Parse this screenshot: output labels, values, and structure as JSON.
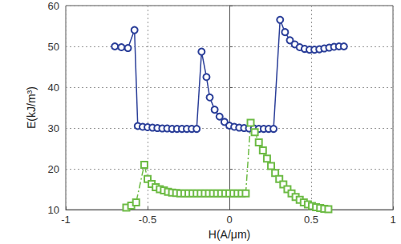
{
  "chart_data": {
    "type": "line",
    "x_label": "H(A/μm)",
    "y_label": "E(kJ/m³)",
    "xlim": [
      -1,
      1
    ],
    "xticks": [
      -1,
      -0.5,
      0,
      0.5,
      1
    ],
    "ylim": [
      10,
      60
    ],
    "yticks": [
      10,
      20,
      30,
      40,
      50,
      60
    ],
    "grid": true,
    "series": [
      {
        "color": "#2b3f99",
        "marker": "circle",
        "line_style": "solid",
        "x": [
          -0.7,
          -0.66,
          -0.62,
          -0.58,
          -0.56,
          -0.53,
          -0.5,
          -0.47,
          -0.44,
          -0.41,
          -0.38,
          -0.35,
          -0.32,
          -0.29,
          -0.26,
          -0.23,
          -0.2,
          -0.17,
          -0.14,
          -0.12,
          -0.09,
          -0.06,
          -0.03,
          0.0,
          0.03,
          0.06,
          0.09,
          0.12,
          0.15,
          0.18,
          0.21,
          0.24,
          0.27,
          0.31,
          0.34,
          0.37,
          0.4,
          0.43,
          0.46,
          0.49,
          0.52,
          0.55,
          0.58,
          0.61,
          0.64,
          0.67,
          0.7
        ],
        "values": [
          50.0,
          49.8,
          49.6,
          54.0,
          30.5,
          30.3,
          30.2,
          30.1,
          30.0,
          29.9,
          29.9,
          29.8,
          29.8,
          29.8,
          29.8,
          29.8,
          29.8,
          48.7,
          42.5,
          37.5,
          34.5,
          32.8,
          31.5,
          30.6,
          30.3,
          30.1,
          30.0,
          29.9,
          29.9,
          29.8,
          29.8,
          29.8,
          29.8,
          56.5,
          53.5,
          51.5,
          50.5,
          49.8,
          49.4,
          49.2,
          49.2,
          49.3,
          49.5,
          49.7,
          49.9,
          50.0,
          50.0
        ]
      },
      {
        "color": "#6dbb45",
        "marker": "square",
        "line_style": "dashdot",
        "x": [
          -0.63,
          -0.6,
          -0.57,
          -0.52,
          -0.5,
          -0.475,
          -0.45,
          -0.425,
          -0.4,
          -0.375,
          -0.35,
          -0.325,
          -0.3,
          -0.275,
          -0.25,
          -0.225,
          -0.2,
          -0.175,
          -0.15,
          -0.125,
          -0.1,
          -0.075,
          -0.05,
          -0.025,
          0.0,
          0.025,
          0.05,
          0.075,
          0.1,
          0.13,
          0.155,
          0.18,
          0.205,
          0.23,
          0.255,
          0.28,
          0.305,
          0.33,
          0.355,
          0.38,
          0.405,
          0.43,
          0.455,
          0.48,
          0.505,
          0.53,
          0.555,
          0.58,
          0.605
        ],
        "values": [
          10.5,
          11.0,
          11.8,
          21.0,
          17.5,
          16.3,
          15.5,
          15.0,
          14.7,
          14.4,
          14.2,
          14.1,
          14.0,
          14.0,
          14.0,
          14.0,
          14.0,
          14.0,
          14.0,
          14.0,
          14.0,
          14.0,
          14.0,
          14.0,
          14.0,
          14.0,
          14.0,
          14.0,
          14.0,
          31.3,
          29.0,
          26.5,
          24.5,
          22.5,
          20.7,
          19.0,
          17.5,
          16.2,
          15.0,
          14.0,
          13.1,
          12.4,
          11.8,
          11.3,
          10.9,
          10.6,
          10.4,
          10.2,
          10.1
        ]
      }
    ]
  }
}
